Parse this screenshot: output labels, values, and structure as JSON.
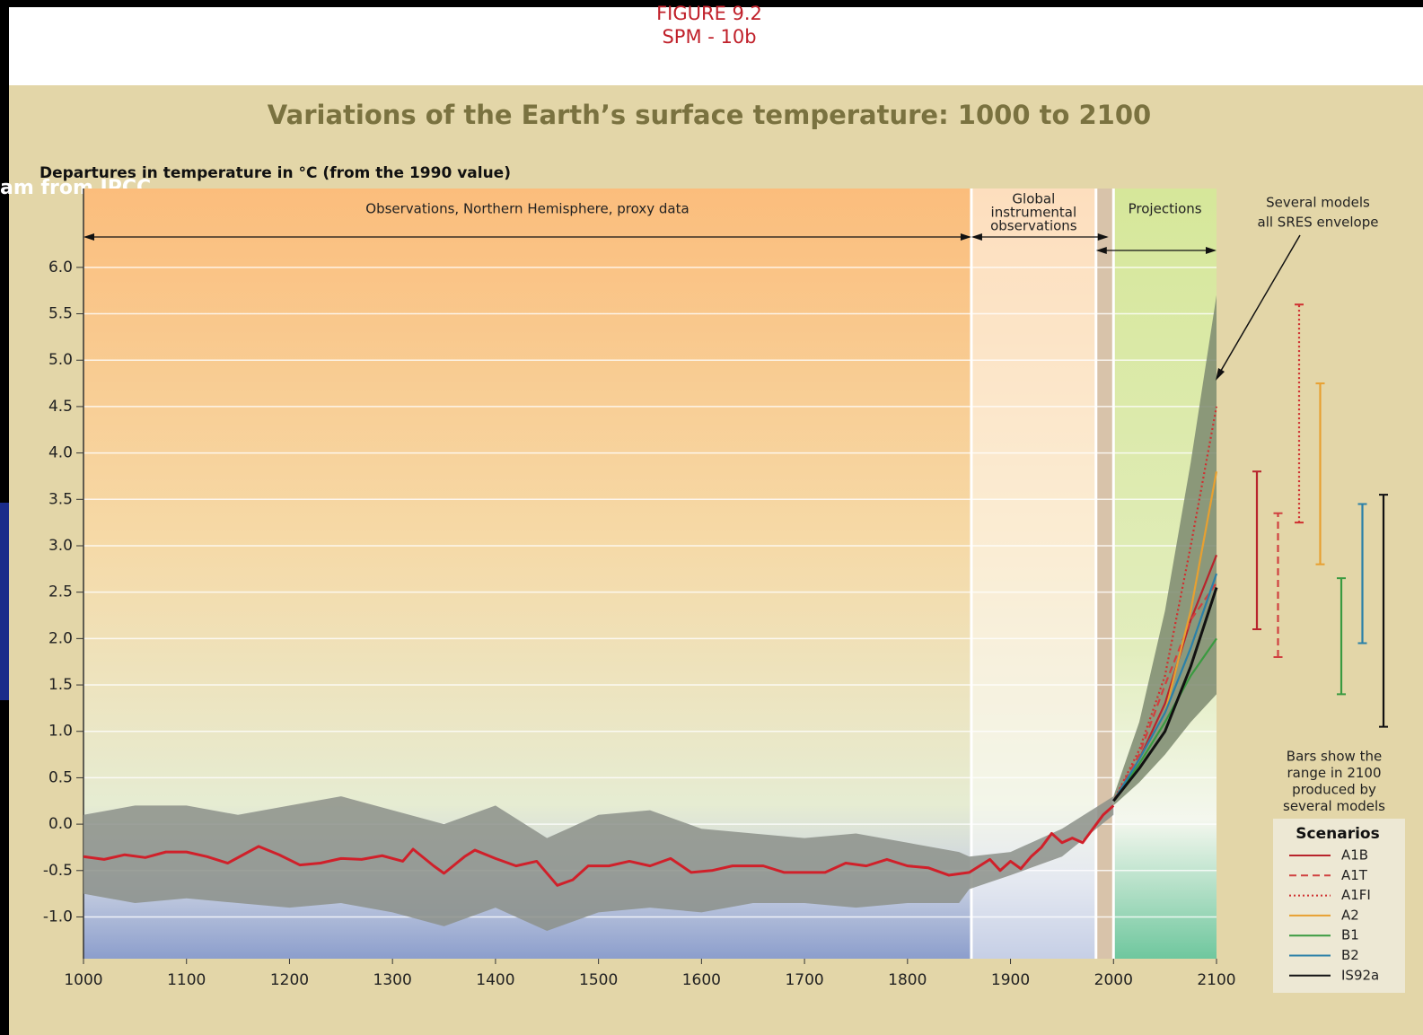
{
  "header": {
    "figure": "FIGURE 9.2",
    "code": "SPM - 10b",
    "caption": "am from IPCC"
  },
  "chart_data": {
    "type": "line",
    "title": "Variations of the Earth’s surface temperature: 1000 to 2100",
    "y_label": "Departures in temperature in °C (from the 1990 value)",
    "xlim": [
      1000,
      2100
    ],
    "xticks": [
      1000,
      1100,
      1200,
      1300,
      1400,
      1500,
      1600,
      1700,
      1800,
      1900,
      2000,
      2100
    ],
    "ylim": [
      -1.45,
      6.85
    ],
    "yticks": [
      {
        "value": -1,
        "label": "-1.0"
      },
      {
        "value": -0.5,
        "label": "-0.5"
      },
      {
        "value": 0,
        "label": "0.0"
      },
      {
        "value": 0.5,
        "label": "0.5"
      },
      {
        "value": 1,
        "label": "1.0"
      },
      {
        "value": 1.5,
        "label": "1.5"
      },
      {
        "value": 2,
        "label": "2.0"
      },
      {
        "value": 2.5,
        "label": "2.5"
      },
      {
        "value": 3,
        "label": "3.0"
      },
      {
        "value": 3.5,
        "label": "3.5"
      },
      {
        "value": 4,
        "label": "4.0"
      },
      {
        "value": 4.5,
        "label": "4.5"
      },
      {
        "value": 5,
        "label": "5.0"
      },
      {
        "value": 5.5,
        "label": "5.5"
      },
      {
        "value": 6,
        "label": "6.0"
      }
    ],
    "grid": true,
    "regions": [
      {
        "label": [
          "Observations, Northern Hemisphere, proxy data"
        ],
        "start": 1000,
        "end": 1862
      },
      {
        "label": [
          "Global",
          "instrumental",
          "observations"
        ],
        "start": 1862,
        "end": 1983
      },
      {
        "label": [
          "Projections"
        ],
        "start": 2000,
        "end": 2100
      }
    ],
    "observations": {
      "color": "#d0202a",
      "x": [
        1000,
        1020,
        1040,
        1060,
        1080,
        1100,
        1120,
        1140,
        1160,
        1170,
        1190,
        1210,
        1230,
        1250,
        1270,
        1290,
        1310,
        1320,
        1340,
        1350,
        1370,
        1380,
        1400,
        1420,
        1440,
        1460,
        1475,
        1490,
        1510,
        1530,
        1550,
        1570,
        1590,
        1610,
        1630,
        1660,
        1680,
        1720,
        1740,
        1760,
        1780,
        1800,
        1820,
        1840,
        1860,
        1870,
        1880,
        1890,
        1900,
        1910,
        1920,
        1930,
        1940,
        1950,
        1960,
        1970,
        1980,
        1990,
        2000
      ],
      "values": [
        -0.35,
        -0.38,
        -0.33,
        -0.36,
        -0.3,
        -0.3,
        -0.35,
        -0.42,
        -0.3,
        -0.24,
        -0.33,
        -0.44,
        -0.42,
        -0.37,
        -0.38,
        -0.34,
        -0.4,
        -0.27,
        -0.45,
        -0.53,
        -0.35,
        -0.28,
        -0.37,
        -0.45,
        -0.4,
        -0.66,
        -0.6,
        -0.45,
        -0.45,
        -0.4,
        -0.45,
        -0.37,
        -0.52,
        -0.5,
        -0.45,
        -0.45,
        -0.52,
        -0.52,
        -0.42,
        -0.45,
        -0.38,
        -0.45,
        -0.47,
        -0.55,
        -0.52,
        -0.45,
        -0.38,
        -0.5,
        -0.4,
        -0.48,
        -0.35,
        -0.25,
        -0.1,
        -0.2,
        -0.15,
        -0.2,
        -0.05,
        0.1,
        0.2
      ]
    },
    "proxy_range": {
      "color": "#8c908a",
      "x": [
        1000,
        1050,
        1100,
        1150,
        1200,
        1250,
        1300,
        1350,
        1400,
        1450,
        1500,
        1550,
        1600,
        1650,
        1700,
        1750,
        1800,
        1850,
        1860,
        1900,
        1950,
        2000
      ],
      "low": [
        -0.75,
        -0.85,
        -0.8,
        -0.85,
        -0.9,
        -0.85,
        -0.95,
        -1.1,
        -0.9,
        -1.15,
        -0.95,
        -0.9,
        -0.95,
        -0.85,
        -0.85,
        -0.9,
        -0.85,
        -0.85,
        -0.7,
        -0.55,
        -0.35,
        0.1
      ],
      "high": [
        0.1,
        0.2,
        0.2,
        0.1,
        0.2,
        0.3,
        0.15,
        0,
        0.2,
        -0.15,
        0.1,
        0.15,
        -0.05,
        -0.1,
        -0.15,
        -0.1,
        -0.2,
        -0.3,
        -0.35,
        -0.3,
        -0.05,
        0.3
      ]
    },
    "envelope": {
      "color": "#7d8a70",
      "x": [
        2000,
        2025,
        2050,
        2075,
        2100
      ],
      "low": [
        0.2,
        0.45,
        0.75,
        1.1,
        1.4
      ],
      "high": [
        0.3,
        1.1,
        2.3,
        3.9,
        5.7
      ]
    },
    "projection_x": [
      2000,
      2025,
      2050,
      2075,
      2100
    ],
    "series": [
      {
        "name": "A1B",
        "color": "#b8242c",
        "dash": "solid",
        "values": [
          0.25,
          0.7,
          1.3,
          2.2,
          2.9
        ],
        "range": [
          2.1,
          3.8
        ]
      },
      {
        "name": "A1T",
        "color": "#d04040",
        "dash": "dashed",
        "values": [
          0.25,
          0.75,
          1.5,
          2.2,
          2.6
        ],
        "range": [
          1.8,
          3.35
        ]
      },
      {
        "name": "A1FI",
        "color": "#d03030",
        "dash": "dotted",
        "values": [
          0.25,
          0.8,
          1.6,
          3.0,
          4.5
        ],
        "range": [
          3.25,
          5.6
        ]
      },
      {
        "name": "A2",
        "color": "#e8a030",
        "dash": "solid",
        "values": [
          0.25,
          0.7,
          1.2,
          2.3,
          3.8
        ],
        "range": [
          2.8,
          4.75
        ]
      },
      {
        "name": "B1",
        "color": "#3a9a40",
        "dash": "solid",
        "values": [
          0.25,
          0.65,
          1.1,
          1.6,
          2.0
        ],
        "range": [
          1.4,
          2.65
        ]
      },
      {
        "name": "B2",
        "color": "#2a80a8",
        "dash": "solid",
        "values": [
          0.25,
          0.7,
          1.2,
          1.9,
          2.7
        ],
        "range": [
          1.95,
          3.45
        ]
      },
      {
        "name": "IS92a",
        "color": "#111111",
        "dash": "solid",
        "values": [
          0.25,
          0.6,
          1.0,
          1.7,
          2.55
        ],
        "range": [
          1.05,
          3.55
        ]
      }
    ],
    "legend": {
      "title": "Scenarios",
      "position": "lower right"
    },
    "annotations": [
      {
        "lines": [
          "Several models",
          "all SRES envelope"
        ]
      },
      {
        "lines": [
          "Bars show the",
          "range in 2100",
          "produced by",
          "several models"
        ]
      }
    ]
  }
}
